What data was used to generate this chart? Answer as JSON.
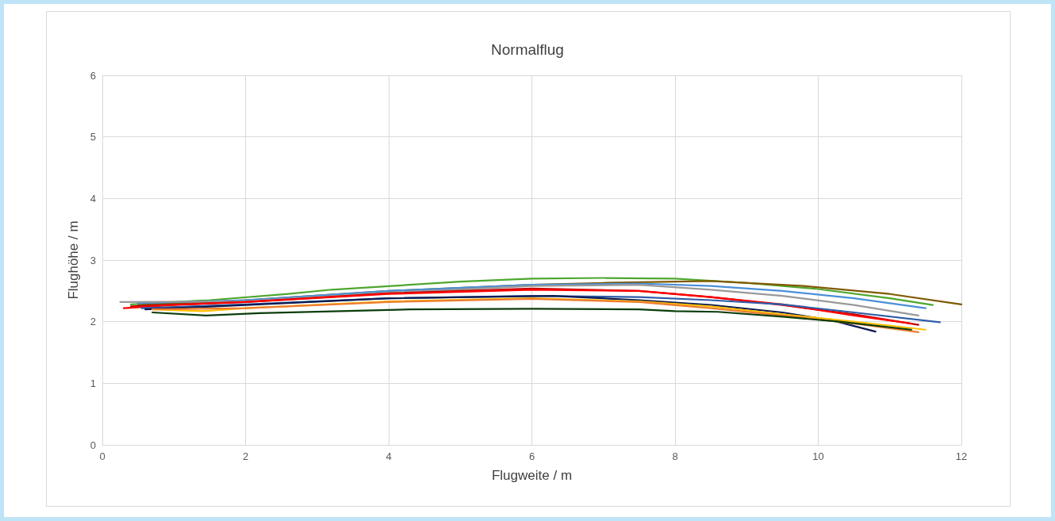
{
  "chart_data": {
    "type": "line",
    "title": "Normalflug",
    "xlabel": "Flugweite / m",
    "ylabel": "Flughöhe / m",
    "xlim": [
      0,
      12
    ],
    "xticks": [
      0,
      2,
      4,
      6,
      8,
      10,
      12
    ],
    "ylim": [
      0,
      6
    ],
    "yticks": [
      0,
      1,
      2,
      3,
      4,
      5,
      6
    ],
    "grid": true,
    "marker": "none",
    "line_style": "solid",
    "series": [
      {
        "color": "#4ea72e",
        "x": [
          0.4,
          1.5,
          2.6,
          3.2,
          5,
          6,
          7,
          8,
          9,
          10,
          11,
          11.6
        ],
        "values": [
          2.28,
          2.35,
          2.45,
          2.52,
          2.65,
          2.7,
          2.71,
          2.7,
          2.63,
          2.53,
          2.38,
          2.27
        ]
      },
      {
        "color": "#7f5a00",
        "x": [
          0.5,
          2,
          4,
          6,
          7,
          8.5,
          9.8,
          11,
          12
        ],
        "values": [
          2.27,
          2.35,
          2.5,
          2.6,
          2.63,
          2.66,
          2.58,
          2.45,
          2.28
        ]
      },
      {
        "color": "#4a90d9",
        "x": [
          0.5,
          2,
          4,
          6,
          7.5,
          8.5,
          9.5,
          10.5,
          11.5
        ],
        "values": [
          2.3,
          2.35,
          2.5,
          2.6,
          2.62,
          2.58,
          2.5,
          2.38,
          2.22
        ]
      },
      {
        "color": "#999999",
        "x": [
          0.25,
          2,
          4,
          6,
          7.5,
          8.5,
          9.5,
          10.5,
          11.4
        ],
        "values": [
          2.32,
          2.33,
          2.47,
          2.58,
          2.6,
          2.52,
          2.42,
          2.27,
          2.1
        ]
      },
      {
        "color": "#c00000",
        "x": [
          0.4,
          2,
          4,
          6,
          7.5,
          8.5,
          9.5,
          10.5,
          11.4
        ],
        "values": [
          2.25,
          2.32,
          2.46,
          2.54,
          2.5,
          2.4,
          2.27,
          2.12,
          1.95
        ]
      },
      {
        "color": "#ff0000",
        "x": [
          0.3,
          1,
          2,
          4,
          6,
          7.5,
          8.5,
          9.5,
          10.5,
          11.3
        ],
        "values": [
          2.22,
          2.27,
          2.32,
          2.45,
          2.52,
          2.5,
          2.4,
          2.28,
          2.1,
          1.97
        ]
      },
      {
        "color": "#2e5ca8",
        "x": [
          0.55,
          2,
          4,
          6,
          7.5,
          8.5,
          9.5,
          10.5,
          11.7
        ],
        "values": [
          2.22,
          2.28,
          2.38,
          2.42,
          2.4,
          2.35,
          2.28,
          2.15,
          1.99
        ]
      },
      {
        "color": "#0d1a4f",
        "x": [
          0.6,
          2,
          4,
          6.3,
          7.5,
          8.5,
          9.5,
          10.2,
          10.8
        ],
        "values": [
          2.2,
          2.27,
          2.38,
          2.42,
          2.35,
          2.27,
          2.15,
          2.02,
          1.84
        ]
      },
      {
        "color": "#ffc000",
        "x": [
          0.7,
          1.4,
          2,
          4,
          6,
          7.5,
          8.5,
          9.5,
          10.5,
          11.5
        ],
        "values": [
          2.2,
          2.17,
          2.22,
          2.33,
          2.38,
          2.33,
          2.25,
          2.12,
          2.0,
          1.87
        ]
      },
      {
        "color": "#ed7d31",
        "x": [
          0.7,
          2,
          4,
          6,
          7.5,
          8.5,
          9.5,
          10.5,
          11.4
        ],
        "values": [
          2.2,
          2.22,
          2.32,
          2.37,
          2.32,
          2.22,
          2.1,
          1.97,
          1.83
        ]
      },
      {
        "color": "#0b3d0b",
        "x": [
          0.7,
          1.45,
          2.2,
          4.3,
          6,
          7.5,
          8,
          8.6,
          9.5,
          10.3,
          11.3
        ],
        "values": [
          2.15,
          2.1,
          2.14,
          2.2,
          2.21,
          2.2,
          2.17,
          2.16,
          2.08,
          2.0,
          1.87
        ]
      }
    ]
  }
}
